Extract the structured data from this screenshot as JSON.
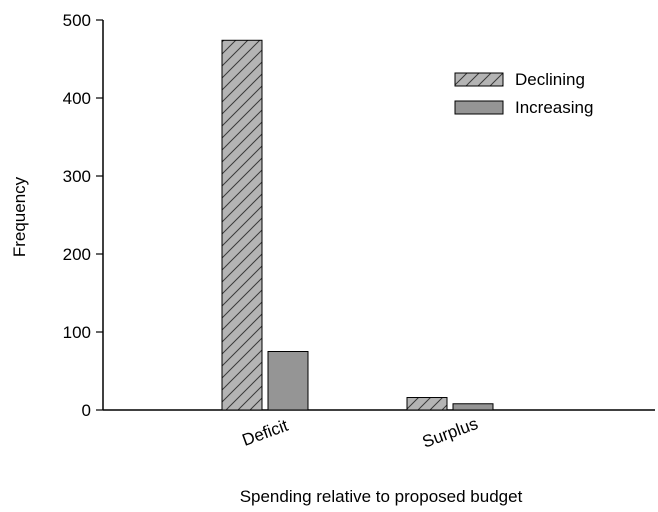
{
  "chart_data": {
    "type": "bar",
    "categories": [
      "Deficit",
      "Surplus"
    ],
    "series": [
      {
        "name": "Declining",
        "values": [
          474,
          16
        ],
        "color": "#b4b4b4",
        "pattern": "diagonal-hatch"
      },
      {
        "name": "Increasing",
        "values": [
          75,
          8
        ],
        "color": "#959595",
        "pattern": "solid"
      }
    ],
    "xlabel": "Spending relative to proposed budget",
    "ylabel": "Frequency",
    "ylim": [
      0,
      500
    ],
    "yticks": [
      0,
      100,
      200,
      300,
      400,
      500
    ],
    "grid": false,
    "legend_position": "top-right"
  }
}
